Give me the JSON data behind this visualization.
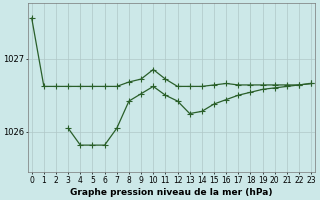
{
  "line1": {
    "x": [
      0,
      1,
      2,
      3,
      4,
      5,
      6,
      7,
      8,
      9,
      10,
      11,
      12,
      13,
      14,
      15,
      16,
      17,
      18,
      19,
      20,
      21,
      22,
      23
    ],
    "y": [
      1027.55,
      1026.62,
      1026.62,
      1026.62,
      1026.62,
      1026.62,
      1026.62,
      1026.62,
      1026.68,
      1026.72,
      1026.85,
      1026.72,
      1026.62,
      1026.62,
      1026.62,
      1026.64,
      1026.66,
      1026.64,
      1026.64,
      1026.64,
      1026.64,
      1026.64,
      1026.64,
      1026.66
    ]
  },
  "line2": {
    "x": [
      3,
      4,
      5,
      6,
      7,
      8,
      9,
      10,
      11,
      12,
      13,
      14,
      15,
      16,
      17,
      18,
      19,
      20,
      21,
      22,
      23
    ],
    "y": [
      1026.05,
      1025.82,
      1025.82,
      1025.82,
      1026.05,
      1026.42,
      1026.52,
      1026.62,
      1026.5,
      1026.42,
      1026.25,
      1026.28,
      1026.38,
      1026.44,
      1026.5,
      1026.54,
      1026.58,
      1026.6,
      1026.62,
      1026.64,
      1026.66
    ]
  },
  "line_color": "#2a5f2a",
  "marker": "+",
  "marker_size": 4,
  "marker_linewidth": 0.8,
  "linewidth": 0.9,
  "background_color": "#cce8e8",
  "grid_color": "#b0c8c8",
  "xlabel": "Graphe pression niveau de la mer (hPa)",
  "xticks": [
    0,
    1,
    2,
    3,
    4,
    5,
    6,
    7,
    8,
    9,
    10,
    11,
    12,
    13,
    14,
    15,
    16,
    17,
    18,
    19,
    20,
    21,
    22,
    23
  ],
  "ytick_labels": [
    "1026",
    "1027"
  ],
  "ytick_vals": [
    1026.0,
    1027.0
  ],
  "ylim": [
    1025.45,
    1027.75
  ],
  "xlim": [
    -0.3,
    23.3
  ],
  "xlabel_fontsize": 6.5,
  "tick_fontsize": 5.5
}
